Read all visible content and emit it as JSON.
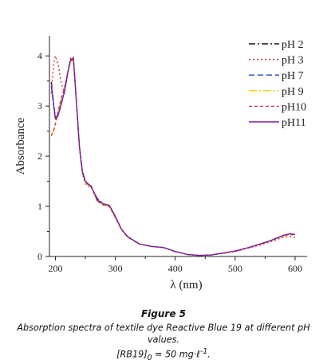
{
  "chart_data": {
    "type": "line",
    "xlabel": "λ (nm)",
    "ylabel": "Absorbance",
    "xlim": [
      190,
      620
    ],
    "ylim": [
      0,
      4.4
    ],
    "x_ticks": [
      200,
      300,
      400,
      500,
      600
    ],
    "y_ticks": [
      0,
      1,
      2,
      3,
      4
    ],
    "grid": false,
    "legend_position": "top-right",
    "series": [
      {
        "name": "pH 2",
        "color": "#111111",
        "dash": "8,3,2,3",
        "x": [
          193,
          197,
          200,
          205,
          210,
          215,
          220,
          225,
          230,
          235,
          240,
          245,
          250,
          260,
          270,
          280,
          290,
          300,
          310,
          320,
          340,
          360,
          380,
          400,
          420,
          440,
          460,
          480,
          500,
          520,
          540,
          560,
          580,
          590,
          600
        ],
        "y": [
          3.48,
          3.05,
          2.75,
          2.85,
          3.05,
          3.3,
          3.65,
          3.92,
          3.96,
          3.1,
          2.2,
          1.7,
          1.5,
          1.38,
          1.15,
          1.05,
          1.02,
          0.8,
          0.55,
          0.4,
          0.25,
          0.2,
          0.18,
          0.1,
          0.04,
          0.02,
          0.03,
          0.07,
          0.11,
          0.17,
          0.24,
          0.32,
          0.42,
          0.45,
          0.44
        ]
      },
      {
        "name": "pH 3",
        "color": "#e02020",
        "dash": "2,3",
        "x": [
          193,
          197,
          200,
          205,
          210,
          215,
          220,
          225,
          230,
          235,
          240,
          245,
          250,
          260,
          270,
          280,
          290,
          300,
          310,
          320,
          340,
          360,
          380,
          400,
          420,
          440,
          460,
          480,
          500,
          520,
          540,
          560,
          580,
          590,
          600
        ],
        "y": [
          3.25,
          3.85,
          4.0,
          3.8,
          3.45,
          3.25,
          3.6,
          3.95,
          3.98,
          3.05,
          2.15,
          1.65,
          1.45,
          1.36,
          1.1,
          1.02,
          1.0,
          0.78,
          0.54,
          0.39,
          0.25,
          0.2,
          0.18,
          0.1,
          0.04,
          0.02,
          0.03,
          0.06,
          0.1,
          0.16,
          0.22,
          0.3,
          0.38,
          0.4,
          0.38
        ]
      },
      {
        "name": "pH 7",
        "color": "#1f3fd0",
        "dash": "7,4",
        "x": [
          193,
          197,
          200,
          205,
          210,
          215,
          220,
          225,
          230,
          235,
          240,
          245,
          250,
          260,
          270,
          280,
          290,
          300,
          310,
          320,
          340,
          360,
          380,
          400,
          420,
          440,
          460,
          480,
          500,
          520,
          540,
          560,
          580,
          590,
          600
        ],
        "y": [
          3.4,
          3.0,
          2.72,
          2.82,
          3.05,
          3.28,
          3.62,
          3.9,
          3.95,
          3.08,
          2.18,
          1.68,
          1.49,
          1.4,
          1.12,
          1.04,
          1.01,
          0.79,
          0.55,
          0.4,
          0.25,
          0.2,
          0.18,
          0.1,
          0.04,
          0.02,
          0.03,
          0.07,
          0.11,
          0.17,
          0.24,
          0.32,
          0.42,
          0.45,
          0.44
        ]
      },
      {
        "name": "pH 9",
        "color": "#f0d000",
        "dash": "10,3,2,3",
        "x": [
          193,
          197,
          200,
          205,
          210,
          215,
          220,
          225,
          230,
          235,
          240,
          245,
          250,
          260,
          270,
          280,
          290,
          300,
          310,
          320,
          340,
          360,
          380,
          400,
          420,
          440,
          460,
          480,
          500,
          520,
          540,
          560,
          580,
          590,
          600
        ],
        "y": [
          2.45,
          2.5,
          2.62,
          2.9,
          3.15,
          3.35,
          3.62,
          3.88,
          3.93,
          3.06,
          2.16,
          1.66,
          1.47,
          1.37,
          1.1,
          1.03,
          1.0,
          0.78,
          0.54,
          0.39,
          0.25,
          0.2,
          0.18,
          0.1,
          0.04,
          0.02,
          0.03,
          0.07,
          0.11,
          0.17,
          0.24,
          0.32,
          0.41,
          0.44,
          0.43
        ]
      },
      {
        "name": "pH10",
        "color": "#d0305a",
        "dash": "4,3",
        "x": [
          193,
          197,
          200,
          205,
          210,
          215,
          220,
          225,
          230,
          235,
          240,
          245,
          250,
          260,
          270,
          280,
          290,
          300,
          310,
          320,
          340,
          360,
          380,
          400,
          420,
          440,
          460,
          480,
          500,
          520,
          540,
          560,
          580,
          590,
          600
        ],
        "y": [
          2.4,
          2.52,
          2.65,
          2.92,
          3.18,
          3.36,
          3.63,
          3.9,
          3.94,
          3.07,
          2.17,
          1.67,
          1.48,
          1.38,
          1.11,
          1.03,
          1.0,
          0.78,
          0.54,
          0.39,
          0.25,
          0.2,
          0.18,
          0.1,
          0.04,
          0.02,
          0.03,
          0.07,
          0.11,
          0.17,
          0.24,
          0.32,
          0.41,
          0.44,
          0.43
        ]
      },
      {
        "name": "pH11",
        "color": "#7a1fa0",
        "dash": "",
        "x": [
          193,
          197,
          200,
          205,
          210,
          215,
          220,
          225,
          230,
          235,
          240,
          245,
          250,
          260,
          270,
          280,
          290,
          300,
          310,
          320,
          340,
          360,
          380,
          400,
          420,
          440,
          460,
          480,
          500,
          520,
          540,
          560,
          580,
          590,
          600
        ],
        "y": [
          3.45,
          3.02,
          2.74,
          2.84,
          3.06,
          3.29,
          3.63,
          3.91,
          3.96,
          3.09,
          2.19,
          1.69,
          1.5,
          1.39,
          1.13,
          1.05,
          1.02,
          0.8,
          0.55,
          0.4,
          0.25,
          0.2,
          0.18,
          0.1,
          0.04,
          0.02,
          0.03,
          0.07,
          0.11,
          0.17,
          0.24,
          0.32,
          0.42,
          0.45,
          0.44
        ]
      }
    ]
  },
  "caption": {
    "title": "Figure 5",
    "line1": "Absorption spectra of textile dye Reactive Blue 19 at different pH values.",
    "line2_prefix": "[RB19]",
    "line2_sub": "0",
    "line2_rest": " = 50 mg·ℓ",
    "line2_sup": "-1",
    "line2_end": "."
  }
}
